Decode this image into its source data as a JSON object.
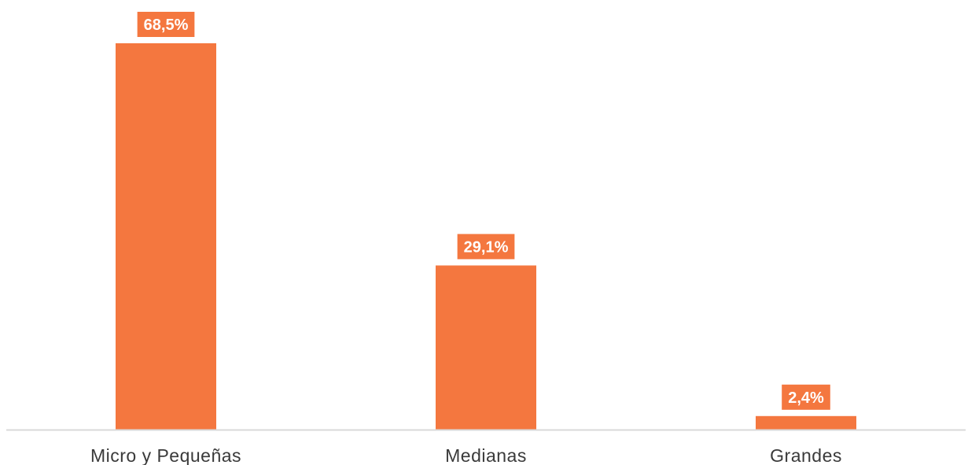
{
  "chart_data": {
    "type": "bar",
    "categories": [
      "Micro y Pequeñas",
      "Medianas",
      "Grandes"
    ],
    "values": [
      68.5,
      29.1,
      2.4
    ],
    "value_labels": [
      "68,5%",
      "29,1%",
      "2,4%"
    ],
    "unit": "%",
    "title": "",
    "xlabel": "",
    "ylabel": "",
    "ylim": [
      0,
      68.5
    ],
    "grid": false,
    "legend": "none",
    "colors": {
      "bar": "#F4773F",
      "label_box": "#F4773F",
      "label_text": "#ffffff",
      "axis": "#d9d9d9",
      "category_text": "#3a3a3a"
    }
  }
}
